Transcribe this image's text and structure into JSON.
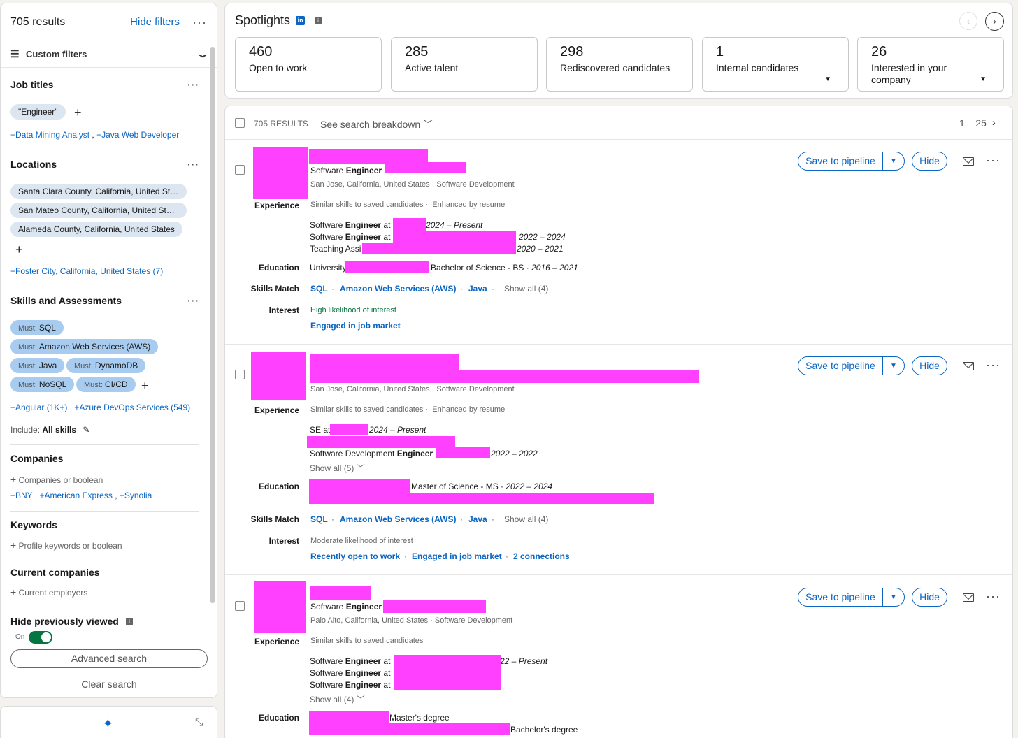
{
  "filters": {
    "results_count": "705 results",
    "hide_filters": "Hide filters",
    "custom_filters": "Custom filters",
    "job_titles": {
      "title": "Job titles",
      "chips": [
        "\"Engineer\""
      ],
      "suggestions": [
        "+Data Mining Analyst",
        "+Java Web Developer"
      ]
    },
    "locations": {
      "title": "Locations",
      "chips": [
        "Santa Clara County, California, United States",
        "San Mateo County, California, United States",
        "Alameda County, California, United States"
      ],
      "suggestion": "+Foster City, California, United States (7)"
    },
    "skills": {
      "title": "Skills and Assessments",
      "must_label": "Must:",
      "chips": [
        "SQL",
        "Amazon Web Services (AWS)",
        "Java",
        "DynamoDB",
        "NoSQL",
        "CI/CD"
      ],
      "suggestions": [
        "+Angular (1K+)",
        "+Azure DevOps Services (549)"
      ],
      "include_label": "Include:",
      "include_value": "All skills"
    },
    "companies": {
      "title": "Companies",
      "placeholder": "Companies or boolean",
      "suggestions": [
        "+BNY",
        "+American Express",
        "+Synolia"
      ]
    },
    "keywords": {
      "title": "Keywords",
      "placeholder": "Profile keywords or boolean"
    },
    "current_companies": {
      "title": "Current companies",
      "placeholder": "Current employers"
    },
    "hide_viewed": {
      "title": "Hide previously viewed",
      "toggle_label": "On",
      "toggle_on": true
    },
    "advanced_search": "Advanced search",
    "clear_search": "Clear search"
  },
  "spotlights": {
    "title": "Spotlights",
    "cards": [
      {
        "value": "460",
        "label": "Open to work"
      },
      {
        "value": "285",
        "label": "Active talent"
      },
      {
        "value": "298",
        "label": "Rediscovered candidates"
      },
      {
        "value": "1",
        "label": "Internal candidates"
      },
      {
        "value": "26",
        "label": "Interested in your company"
      }
    ]
  },
  "results": {
    "count": "705 RESULTS",
    "breakdown": "See search breakdown",
    "pagination": "1 – 25",
    "actions": {
      "save": "Save to pipeline",
      "hide": "Hide"
    },
    "labels": {
      "experience": "Experience",
      "education": "Education",
      "skills_match": "Skills Match",
      "interest": "Interest"
    },
    "common": {
      "similar": "Similar skills to saved candidates",
      "enhanced": "Enhanced by resume"
    },
    "candidates": [
      {
        "headline_plain": "Software ",
        "headline_bold": "Engineer",
        "location": "San Jose, California, United States · Software Development",
        "experience": [
          {
            "plain": "Software ",
            "bold": "Engineer",
            "suffix": " at",
            "dates": "2024 – Present"
          },
          {
            "plain": "Software ",
            "bold": "Engineer",
            "suffix": " at",
            "dates": "2022 – 2024"
          },
          {
            "plain": "Teaching Assi",
            "bold": "",
            "suffix": "",
            "dates": "2020 – 2021"
          }
        ],
        "education": {
          "school": "University",
          "degree": "Bachelor of Science - BS · ",
          "dates": "2016 – 2021"
        },
        "skills": [
          "SQL",
          "Amazon Web Services (AWS)",
          "Java"
        ],
        "show_all_skills": "Show all (4)",
        "interest_level": "High likelihood of interest",
        "interest_links": [
          "Engaged in job market"
        ]
      },
      {
        "location": "San Jose, California, United States · Software Development",
        "experience": [
          {
            "plain": "SE at",
            "bold": "",
            "suffix": "",
            "dates": "2024 – Present"
          },
          {
            "plain": "Software Development ",
            "bold": "Engineer",
            "suffix": "",
            "dates": "2022 – 2022"
          }
        ],
        "show_all_exp": "Show all (5)",
        "education": {
          "school": "",
          "degree": "Master of Science - MS · ",
          "dates": "2022 – 2024"
        },
        "skills": [
          "SQL",
          "Amazon Web Services (AWS)",
          "Java"
        ],
        "show_all_skills": "Show all (4)",
        "interest_level": "Moderate likelihood of interest",
        "interest_links": [
          "Recently open to work",
          "Engaged in job market",
          "2 connections"
        ]
      },
      {
        "headline_plain": "Software ",
        "headline_bold": "Engineer",
        "location": "Palo Alto, California, United States · Software Development",
        "experience": [
          {
            "plain": "Software ",
            "bold": "Engineer",
            "suffix": " at",
            "dates": "22 – Present"
          },
          {
            "plain": "Software ",
            "bold": "Engineer",
            "suffix": " at",
            "dates": ""
          },
          {
            "plain": "Software ",
            "bold": "Engineer",
            "suffix": " at",
            "dates": ""
          }
        ],
        "show_all_exp": "Show all (4)",
        "education": [
          {
            "degree": "Master's degree"
          },
          {
            "degree": "Bachelor's degree"
          }
        ]
      }
    ]
  },
  "colors": {
    "accent": "#0a66c2",
    "redaction": "#ff40ff",
    "toggle": "#057642",
    "must_chip": "#a8ccf0"
  }
}
